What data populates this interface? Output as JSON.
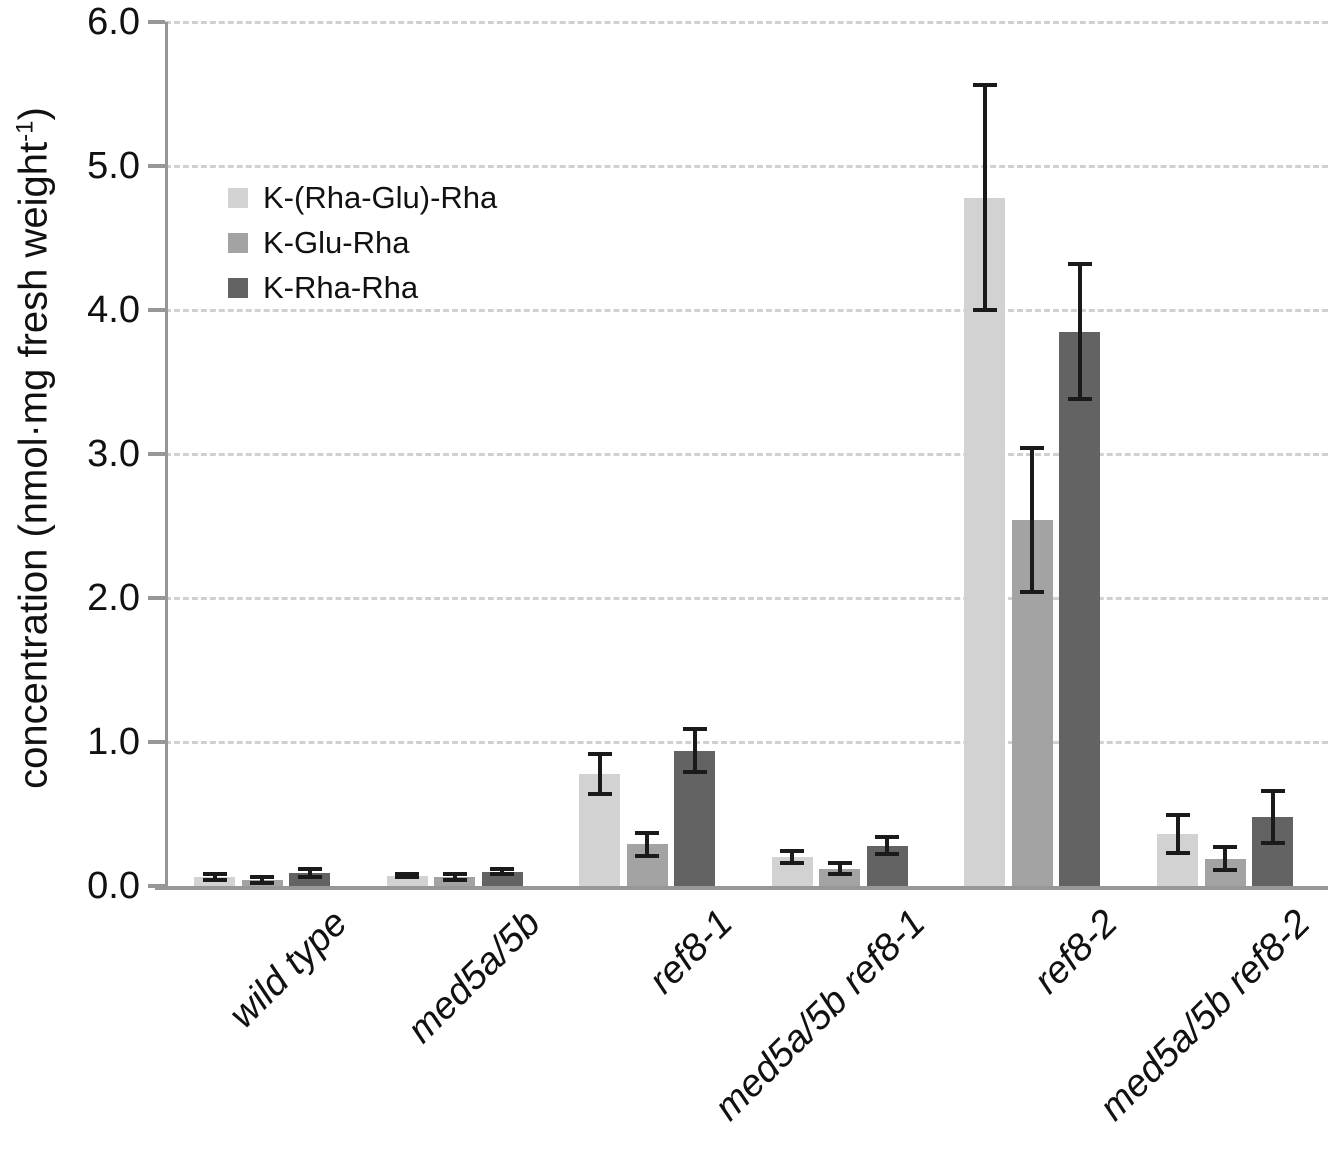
{
  "figure": {
    "background": "#ffffff",
    "axis_color": "#979797",
    "grid_color": "#d0d0d0",
    "error_bar_color": "#1a1a1a",
    "text_color": "#111111"
  },
  "axis": {
    "ylabel_prefix": "concentration (nmol·mg fresh weight",
    "ylabel_sup": "-1",
    "ylabel_suffix": ")"
  },
  "chart_data": {
    "type": "bar",
    "title": "",
    "xlabel": "",
    "ylabel": "concentration (nmol·mg fresh weight^-1)",
    "ylim": [
      0,
      6
    ],
    "yticks": [
      0,
      1,
      2,
      3,
      4,
      5,
      6
    ],
    "ytick_labels": [
      "0.0",
      "1.0",
      "2.0",
      "3.0",
      "4.0",
      "5.0",
      "6.0"
    ],
    "grid": "horizontal dashed at each major tick",
    "legend_position": "upper left inside plot",
    "categories": [
      "wild type",
      "med5a/5b",
      "ref8-1",
      "med5a/5b ref8-1",
      "ref8-2",
      "med5a/5b ref8-2"
    ],
    "series": [
      {
        "name": "K-(Rha-Glu)-Rha",
        "color": "#d2d2d2",
        "values": [
          0.06,
          0.07,
          0.78,
          0.2,
          4.78,
          0.36
        ],
        "errors": [
          0.02,
          0.01,
          0.14,
          0.04,
          0.78,
          0.13
        ]
      },
      {
        "name": "K-Glu-Rha",
        "color": "#a3a3a3",
        "values": [
          0.04,
          0.06,
          0.29,
          0.12,
          2.54,
          0.19
        ],
        "errors": [
          0.02,
          0.02,
          0.08,
          0.04,
          0.5,
          0.08
        ]
      },
      {
        "name": "K-Rha-Rha",
        "color": "#636363",
        "values": [
          0.09,
          0.1,
          0.94,
          0.28,
          3.85,
          0.48
        ],
        "errors": [
          0.03,
          0.02,
          0.15,
          0.06,
          0.47,
          0.18
        ]
      }
    ]
  }
}
